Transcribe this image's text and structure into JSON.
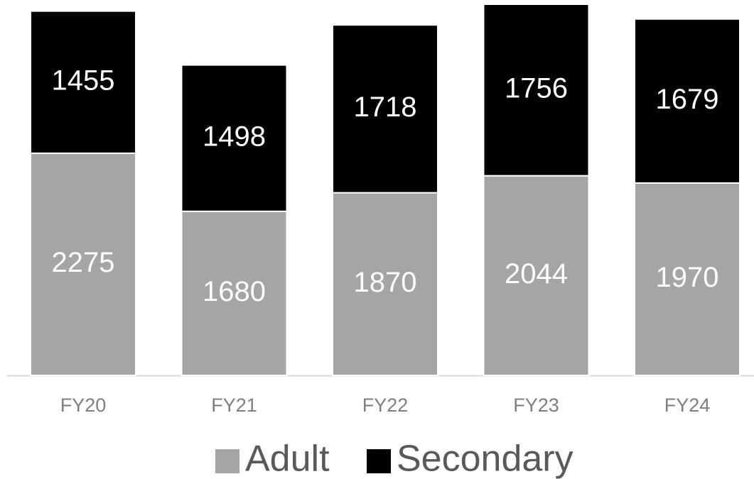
{
  "chart_data": {
    "type": "stacked_bar",
    "categories": [
      "FY20",
      "FY21",
      "FY22",
      "FY23",
      "FY24"
    ],
    "series": [
      {
        "name": "Adult",
        "color": "#a5a5a5",
        "values": [
          2275,
          1680,
          1870,
          2044,
          1970
        ]
      },
      {
        "name": "Secondary",
        "color": "#000000",
        "values": [
          1455,
          1498,
          1718,
          1756,
          1679
        ]
      }
    ],
    "legend": "bottom"
  }
}
